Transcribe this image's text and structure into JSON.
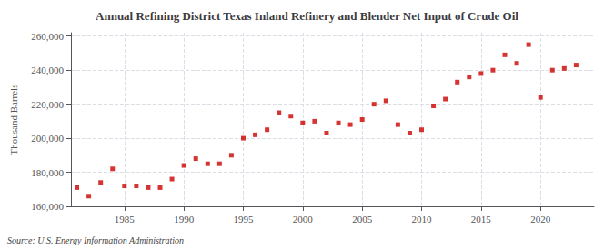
{
  "chart_data": {
    "type": "scatter",
    "title": "Annual Refining District Texas Inland Refinery and Blender Net Input of Crude Oil",
    "ylabel": "Thousand Barrels",
    "annotation": "Source: U.S. Energy Information Administration",
    "color": "#CC0000",
    "marker": "square",
    "grid": true,
    "x": [
      1981,
      1982,
      1983,
      1984,
      1985,
      1986,
      1987,
      1988,
      1989,
      1990,
      1991,
      1992,
      1993,
      1994,
      1995,
      1996,
      1997,
      1998,
      1999,
      2000,
      2001,
      2002,
      2003,
      2004,
      2005,
      2006,
      2007,
      2008,
      2009,
      2010,
      2011,
      2012,
      2013,
      2014,
      2015,
      2016,
      2017,
      2018,
      2019,
      2020,
      2021,
      2022,
      2023
    ],
    "values": [
      171000,
      166000,
      174000,
      182000,
      172000,
      172000,
      171000,
      171000,
      176000,
      184000,
      188000,
      185000,
      185000,
      190000,
      200000,
      202000,
      205000,
      215000,
      213000,
      209000,
      210000,
      203000,
      209000,
      208000,
      211000,
      220000,
      222000,
      208000,
      203000,
      205000,
      219000,
      223000,
      233000,
      236000,
      238000,
      240000,
      249000,
      244000,
      255000,
      224000,
      240000,
      241000,
      243000
    ],
    "xlim": [
      1980.5,
      2024.5
    ],
    "xticks": [
      1985,
      1990,
      1995,
      2000,
      2005,
      2010,
      2015,
      2020
    ],
    "ylim": [
      160000,
      262000
    ],
    "yticks": [
      {
        "value": 160000,
        "label": "160,000"
      },
      {
        "value": 180000,
        "label": "180,000"
      },
      {
        "value": 200000,
        "label": "200,000"
      },
      {
        "value": 220000,
        "label": "220,000"
      },
      {
        "value": 240000,
        "label": "240,000"
      },
      {
        "value": 260000,
        "label": "260,000"
      }
    ]
  }
}
